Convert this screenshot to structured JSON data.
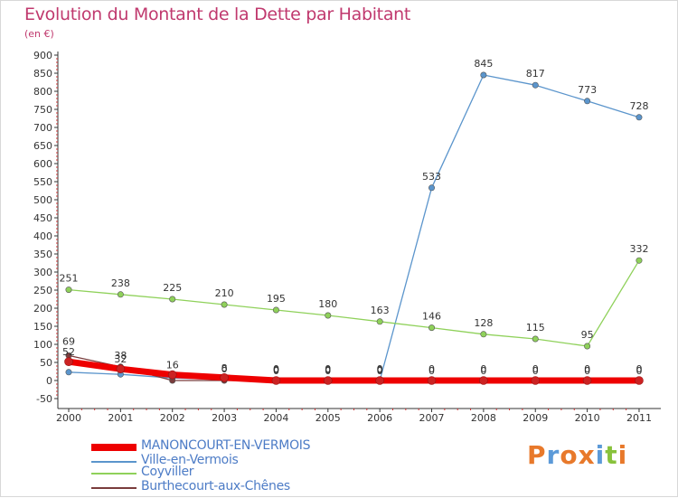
{
  "header": {
    "title": "Evolution du Montant de la Dette par Habitant",
    "unit": "(en €)"
  },
  "logo": {
    "text": "Proxiti",
    "colors": [
      "#e8792b",
      "#5c9ad8",
      "#e8792b",
      "#e8792b",
      "#5c9ad8",
      "#88c23c",
      "#e8792b"
    ]
  },
  "chart_data": {
    "type": "line",
    "x": [
      "2000",
      "2001",
      "2002",
      "2003",
      "2004",
      "2005",
      "2006",
      "2007",
      "2008",
      "2009",
      "2010",
      "2011"
    ],
    "ylim": [
      -50,
      900
    ],
    "yticks": [
      -50,
      0,
      50,
      100,
      150,
      200,
      250,
      300,
      350,
      400,
      450,
      500,
      550,
      600,
      650,
      700,
      750,
      800,
      850,
      900
    ],
    "grid": false,
    "legend_position": "bottom-left",
    "series": [
      {
        "name": "MANONCOURT-EN-VERMOIS",
        "color": "#ee0000",
        "values": [
          52,
          32,
          16,
          8,
          0,
          0,
          0,
          0,
          0,
          0,
          0,
          0
        ],
        "labels": [
          "52",
          "32",
          "16",
          "8",
          "0",
          "0",
          "0",
          "0",
          "0",
          "0",
          "0",
          "0"
        ]
      },
      {
        "name": "Ville-en-Vermois",
        "color": "#5b95cc",
        "values": [
          23,
          17,
          7,
          3,
          0,
          0,
          0,
          533,
          845,
          817,
          773,
          728
        ],
        "labels": [
          "",
          "",
          "",
          "",
          "0",
          "0",
          "0",
          "533",
          "845",
          "817",
          "773",
          "728"
        ]
      },
      {
        "name": "Coyviller",
        "color": "#8fd15a",
        "values": [
          251,
          238,
          225,
          210,
          195,
          180,
          163,
          146,
          128,
          115,
          95,
          332
        ],
        "labels": [
          "251",
          "238",
          "225",
          "210",
          "195",
          "180",
          "163",
          "146",
          "128",
          "115",
          "95",
          "332"
        ]
      },
      {
        "name": "Burthecourt-aux-Chênes",
        "color": "#7a3c3c",
        "values": [
          69,
          38,
          0,
          0,
          0,
          0,
          0,
          0,
          0,
          0,
          0,
          0
        ],
        "labels": [
          "69",
          "38",
          "",
          "0",
          "0",
          "0",
          "0",
          "0",
          "0",
          "0",
          "0",
          "0"
        ]
      }
    ]
  }
}
